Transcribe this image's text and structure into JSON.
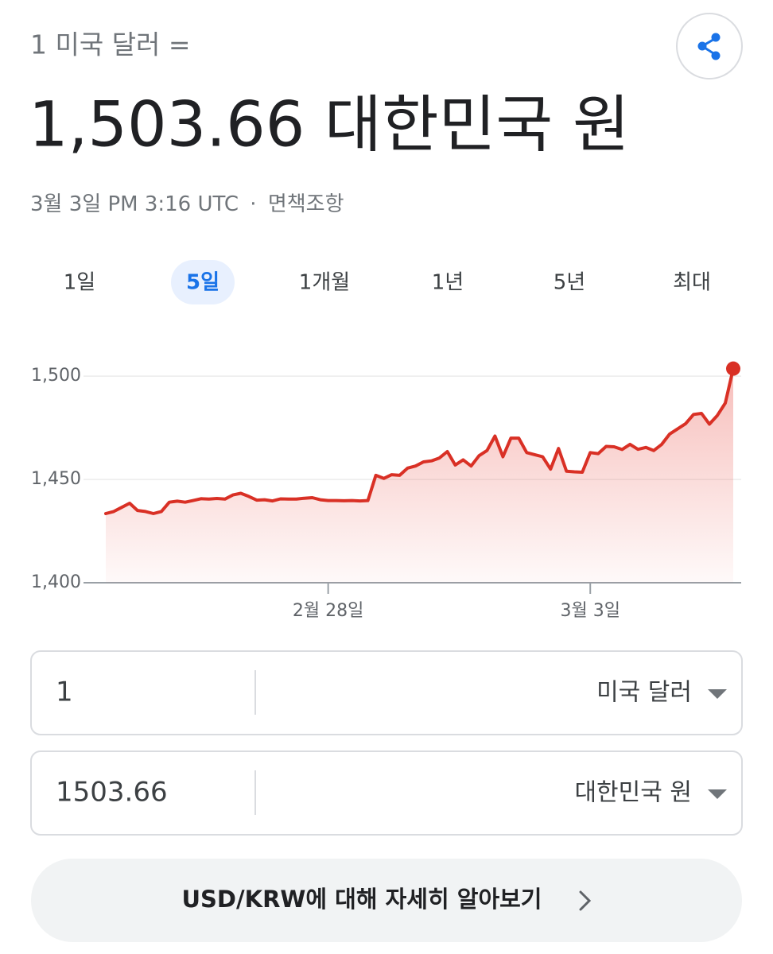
{
  "header": {
    "label": "1 미국 달러 =",
    "value": "1,503.66 대한민국 원",
    "timestamp": "3월 3일 PM 3:16 UTC",
    "separator": "·",
    "disclaimer": "면책조항"
  },
  "tabs": [
    {
      "label": "1일"
    },
    {
      "label": "5일",
      "selected": true
    },
    {
      "label": "1개월"
    },
    {
      "label": "1년"
    },
    {
      "label": "5년"
    },
    {
      "label": "최대"
    }
  ],
  "chart_data": {
    "type": "line",
    "color": "#d93025",
    "values": [
      1433.5,
      1434.5,
      1436.5,
      1438.5,
      1435,
      1434.5,
      1433.5,
      1434.5,
      1439,
      1439.5,
      1439,
      1439.8,
      1440.7,
      1440.5,
      1440.8,
      1440.5,
      1442.5,
      1443.3,
      1441.8,
      1440,
      1440.2,
      1439.6,
      1440.6,
      1440.5,
      1440.5,
      1440.9,
      1441.2,
      1440.2,
      1439.8,
      1439.8,
      1439.7,
      1439.8,
      1439.6,
      1439.8,
      1452,
      1450.5,
      1452.3,
      1452,
      1455.5,
      1456.5,
      1458.5,
      1459,
      1460.4,
      1463.5,
      1457,
      1459.5,
      1456.5,
      1461.5,
      1464,
      1471,
      1461,
      1470,
      1470,
      1463,
      1462,
      1461,
      1455,
      1465,
      1454,
      1453.7,
      1453.5,
      1463,
      1462.5,
      1466,
      1465.8,
      1464.5,
      1467,
      1464.6,
      1465.5,
      1464,
      1467,
      1472,
      1474.5,
      1477,
      1481.5,
      1482,
      1476.8,
      1481,
      1487,
      1503.66
    ],
    "xlim": [
      0,
      79
    ],
    "xticks": [
      {
        "value": 28,
        "label": "2월 28일"
      },
      {
        "value": 61,
        "label": "3월 3일"
      }
    ],
    "ylim": [
      1400,
      1507
    ],
    "yticks": [
      {
        "value": 1400,
        "label": "1,400"
      },
      {
        "value": 1450,
        "label": "1,450"
      },
      {
        "value": 1500,
        "label": "1,500"
      }
    ],
    "grid": true
  },
  "converter": {
    "rows": [
      {
        "amount": "1",
        "currency": "미국 달러"
      },
      {
        "amount": "1503.66",
        "currency": "대한민국 원"
      }
    ]
  },
  "link": {
    "text": "USD/KRW에 대해 자세히 알아보기"
  }
}
